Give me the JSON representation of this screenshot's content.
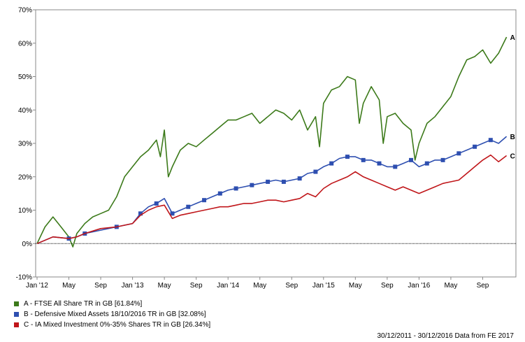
{
  "chart_data": {
    "type": "line",
    "xlabel": "",
    "ylabel": "",
    "ylim": [
      -10,
      70
    ],
    "yticks": [
      "-10%",
      "0%",
      "10%",
      "20%",
      "30%",
      "40%",
      "50%",
      "60%",
      "70%"
    ],
    "xticks": [
      "Jan '12",
      "May",
      "Sep",
      "Jan '13",
      "May",
      "Sep",
      "Jan '14",
      "May",
      "Sep",
      "Jan '15",
      "May",
      "Sep",
      "Jan '16",
      "May",
      "Sep"
    ],
    "x_months": [
      0,
      4,
      8,
      12,
      16,
      20,
      24,
      28,
      32,
      36,
      40,
      44,
      48,
      52,
      56
    ],
    "baseline": 0,
    "grid": false,
    "series": [
      {
        "name": "A - FTSE All Share TR in GB [61.84%]",
        "end_label": "A",
        "color": "#3c7a1a",
        "values": [
          [
            0,
            0
          ],
          [
            1,
            5
          ],
          [
            2,
            8
          ],
          [
            3,
            5
          ],
          [
            4,
            2
          ],
          [
            4.5,
            -1
          ],
          [
            5,
            3
          ],
          [
            6,
            6
          ],
          [
            7,
            8
          ],
          [
            8,
            9
          ],
          [
            9,
            10
          ],
          [
            10,
            14
          ],
          [
            11,
            20
          ],
          [
            12,
            23
          ],
          [
            13,
            26
          ],
          [
            14,
            28
          ],
          [
            15,
            31
          ],
          [
            15.5,
            26
          ],
          [
            16,
            34
          ],
          [
            16.5,
            20
          ],
          [
            17,
            23
          ],
          [
            18,
            28
          ],
          [
            19,
            30
          ],
          [
            20,
            29
          ],
          [
            21,
            31
          ],
          [
            22,
            33
          ],
          [
            23,
            35
          ],
          [
            24,
            37
          ],
          [
            25,
            37
          ],
          [
            26,
            38
          ],
          [
            27,
            39
          ],
          [
            28,
            36
          ],
          [
            29,
            38
          ],
          [
            30,
            40
          ],
          [
            31,
            39
          ],
          [
            32,
            37
          ],
          [
            33,
            40
          ],
          [
            34,
            34
          ],
          [
            35,
            38
          ],
          [
            35.5,
            29
          ],
          [
            36,
            42
          ],
          [
            37,
            46
          ],
          [
            38,
            47
          ],
          [
            39,
            50
          ],
          [
            40,
            49
          ],
          [
            40.5,
            36
          ],
          [
            41,
            42
          ],
          [
            42,
            47
          ],
          [
            43,
            43
          ],
          [
            43.5,
            30
          ],
          [
            44,
            38
          ],
          [
            45,
            39
          ],
          [
            46,
            36
          ],
          [
            47,
            34
          ],
          [
            47.5,
            25
          ],
          [
            48,
            30
          ],
          [
            49,
            36
          ],
          [
            50,
            38
          ],
          [
            51,
            41
          ],
          [
            52,
            44
          ],
          [
            53,
            50
          ],
          [
            54,
            55
          ],
          [
            55,
            56
          ],
          [
            56,
            58
          ],
          [
            57,
            54
          ],
          [
            58,
            57
          ],
          [
            59,
            61.84
          ]
        ]
      },
      {
        "name": "B - Defensive Mixed Assets 18/10/2016 TR in GB [32.08%]",
        "end_label": "B",
        "color": "#2e4fb0",
        "values": [
          [
            0,
            0
          ],
          [
            2,
            2
          ],
          [
            4,
            1.5
          ],
          [
            5,
            2
          ],
          [
            6,
            3
          ],
          [
            8,
            4
          ],
          [
            10,
            5
          ],
          [
            12,
            6
          ],
          [
            13,
            9
          ],
          [
            14,
            11
          ],
          [
            15,
            12
          ],
          [
            16,
            13.5
          ],
          [
            17,
            9
          ],
          [
            18,
            10
          ],
          [
            19,
            11
          ],
          [
            20,
            12
          ],
          [
            21,
            13
          ],
          [
            22,
            14
          ],
          [
            23,
            15
          ],
          [
            24,
            16
          ],
          [
            25,
            16.5
          ],
          [
            26,
            17
          ],
          [
            27,
            17.5
          ],
          [
            28,
            18
          ],
          [
            29,
            18.5
          ],
          [
            30,
            19
          ],
          [
            31,
            18.5
          ],
          [
            32,
            19
          ],
          [
            33,
            19.5
          ],
          [
            34,
            21
          ],
          [
            35,
            21.5
          ],
          [
            36,
            23
          ],
          [
            37,
            24
          ],
          [
            38,
            25.5
          ],
          [
            39,
            26
          ],
          [
            40,
            26
          ],
          [
            41,
            25
          ],
          [
            42,
            25
          ],
          [
            43,
            24
          ],
          [
            44,
            23
          ],
          [
            45,
            23
          ],
          [
            46,
            24
          ],
          [
            47,
            25
          ],
          [
            48,
            23
          ],
          [
            49,
            24
          ],
          [
            50,
            25
          ],
          [
            51,
            25
          ],
          [
            52,
            26
          ],
          [
            53,
            27
          ],
          [
            54,
            28
          ],
          [
            55,
            29
          ],
          [
            56,
            30
          ],
          [
            57,
            31
          ],
          [
            58,
            30
          ],
          [
            59,
            32.08
          ]
        ]
      },
      {
        "name": "C - IA Mixed Investment 0%-35% Shares TR in GB [26.34%]",
        "end_label": "C",
        "color": "#c0161a",
        "values": [
          [
            0,
            0
          ],
          [
            2,
            2
          ],
          [
            4,
            1.5
          ],
          [
            5,
            2
          ],
          [
            6,
            3
          ],
          [
            8,
            4.5
          ],
          [
            10,
            5
          ],
          [
            12,
            6
          ],
          [
            13,
            8.5
          ],
          [
            14,
            10
          ],
          [
            15,
            11
          ],
          [
            16,
            11.5
          ],
          [
            17,
            7.5
          ],
          [
            18,
            8.5
          ],
          [
            19,
            9
          ],
          [
            20,
            9.5
          ],
          [
            21,
            10
          ],
          [
            22,
            10.5
          ],
          [
            23,
            11
          ],
          [
            24,
            11
          ],
          [
            25,
            11.5
          ],
          [
            26,
            12
          ],
          [
            27,
            12
          ],
          [
            28,
            12.5
          ],
          [
            29,
            13
          ],
          [
            30,
            13
          ],
          [
            31,
            12.5
          ],
          [
            32,
            13
          ],
          [
            33,
            13.5
          ],
          [
            34,
            15
          ],
          [
            35,
            14
          ],
          [
            36,
            16.5
          ],
          [
            37,
            18
          ],
          [
            38,
            19
          ],
          [
            39,
            20
          ],
          [
            40,
            21.5
          ],
          [
            41,
            20
          ],
          [
            42,
            19
          ],
          [
            43,
            18
          ],
          [
            44,
            17
          ],
          [
            45,
            16
          ],
          [
            46,
            17
          ],
          [
            47,
            16
          ],
          [
            48,
            15
          ],
          [
            49,
            16
          ],
          [
            50,
            17
          ],
          [
            51,
            18
          ],
          [
            52,
            18.5
          ],
          [
            53,
            19
          ],
          [
            54,
            21
          ],
          [
            55,
            23
          ],
          [
            56,
            25
          ],
          [
            57,
            26.5
          ],
          [
            58,
            24.5
          ],
          [
            59,
            26.34
          ]
        ]
      }
    ]
  },
  "legend": [
    {
      "label": "A - FTSE All Share TR in GB [61.84%]",
      "color": "#3c7a1a"
    },
    {
      "label": "B - Defensive Mixed Assets 18/10/2016 TR in GB [32.08%]",
      "color": "#2e4fb0"
    },
    {
      "label": "C - IA Mixed Investment 0%-35% Shares TR in GB [26.34%]",
      "color": "#c0161a"
    }
  ],
  "footer": "30/12/2011 - 30/12/2016 Data from FE 2017"
}
